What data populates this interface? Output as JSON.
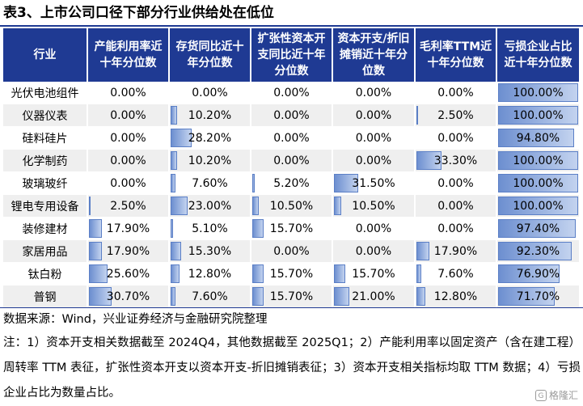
{
  "title": "表3、上市公司口径下部分行业供给处在低位",
  "table": {
    "headers": [
      "行业",
      "产能利用率近十年分位数",
      "存货同比近十年分位数",
      "扩张性资本开支同比近十年分位数",
      "资本开支/折旧摊销近十年分位数",
      "毛利率TTM近十年分位数",
      "亏损企业占比近十年分位数"
    ],
    "rows": [
      {
        "industry": "光伏电池组件",
        "values": [
          "0.00%",
          "0.00%",
          "0.00%",
          "0.00%",
          "0.00%",
          "100.00%"
        ],
        "fractions": [
          0,
          0,
          0,
          0,
          0,
          1.0
        ]
      },
      {
        "industry": "仪器仪表",
        "values": [
          "0.00%",
          "10.20%",
          "0.00%",
          "0.00%",
          "2.50%",
          "100.00%"
        ],
        "fractions": [
          0,
          0.102,
          0,
          0,
          0.025,
          1.0
        ]
      },
      {
        "industry": "硅料硅片",
        "values": [
          "0.00%",
          "28.20%",
          "0.00%",
          "0.00%",
          "0.00%",
          "94.80%"
        ],
        "fractions": [
          0,
          0.282,
          0,
          0,
          0,
          0.948
        ]
      },
      {
        "industry": "化学制药",
        "values": [
          "0.00%",
          "10.20%",
          "0.00%",
          "0.00%",
          "33.30%",
          "100.00%"
        ],
        "fractions": [
          0,
          0.102,
          0,
          0,
          0.333,
          1.0
        ]
      },
      {
        "industry": "玻璃玻纤",
        "values": [
          "0.00%",
          "7.60%",
          "5.20%",
          "31.50%",
          "0.00%",
          "100.00%"
        ],
        "fractions": [
          0,
          0.076,
          0.052,
          0.315,
          0,
          1.0
        ]
      },
      {
        "industry": "锂电专用设备",
        "values": [
          "2.50%",
          "23.00%",
          "10.50%",
          "10.50%",
          "0.00%",
          "100.00%"
        ],
        "fractions": [
          0.025,
          0.23,
          0.105,
          0.105,
          0,
          1.0
        ]
      },
      {
        "industry": "装修建材",
        "values": [
          "17.90%",
          "5.10%",
          "15.70%",
          "0.00%",
          "0.00%",
          "97.40%"
        ],
        "fractions": [
          0.179,
          0.051,
          0.157,
          0,
          0,
          0.974
        ]
      },
      {
        "industry": "家居用品",
        "values": [
          "17.90%",
          "15.30%",
          "0.00%",
          "0.00%",
          "17.90%",
          "92.30%"
        ],
        "fractions": [
          0.179,
          0.153,
          0,
          0,
          0.179,
          0.923
        ]
      },
      {
        "industry": "钛白粉",
        "values": [
          "25.60%",
          "12.80%",
          "15.70%",
          "15.70%",
          "7.60%",
          "76.90%"
        ],
        "fractions": [
          0.256,
          0.128,
          0.157,
          0.157,
          0.076,
          0.769
        ]
      },
      {
        "industry": "普钢",
        "values": [
          "30.70%",
          "7.60%",
          "15.70%",
          "21.00%",
          "12.80%",
          "71.70%"
        ],
        "fractions": [
          0.307,
          0.076,
          0.157,
          0.21,
          0.128,
          0.717
        ]
      }
    ]
  },
  "source": "数据来源：Wind，兴业证券经济与金融研究院整理",
  "note": "注：1）资本开支相关数据截至 2024Q4，其他数据截至 2025Q1；2）产能利用率以固定资产（含在建工程）周转率 TTM 表征，扩张性资本开支以资本开支-折旧摊销表征；3）资本开支相关指标均取 TTM 数据；4）亏损企业占比为数量占比。",
  "watermark": "格隆汇",
  "colors": {
    "header_bg": "#1f3a93",
    "bar": "#6d8fd0",
    "stripe": "#efefef"
  }
}
